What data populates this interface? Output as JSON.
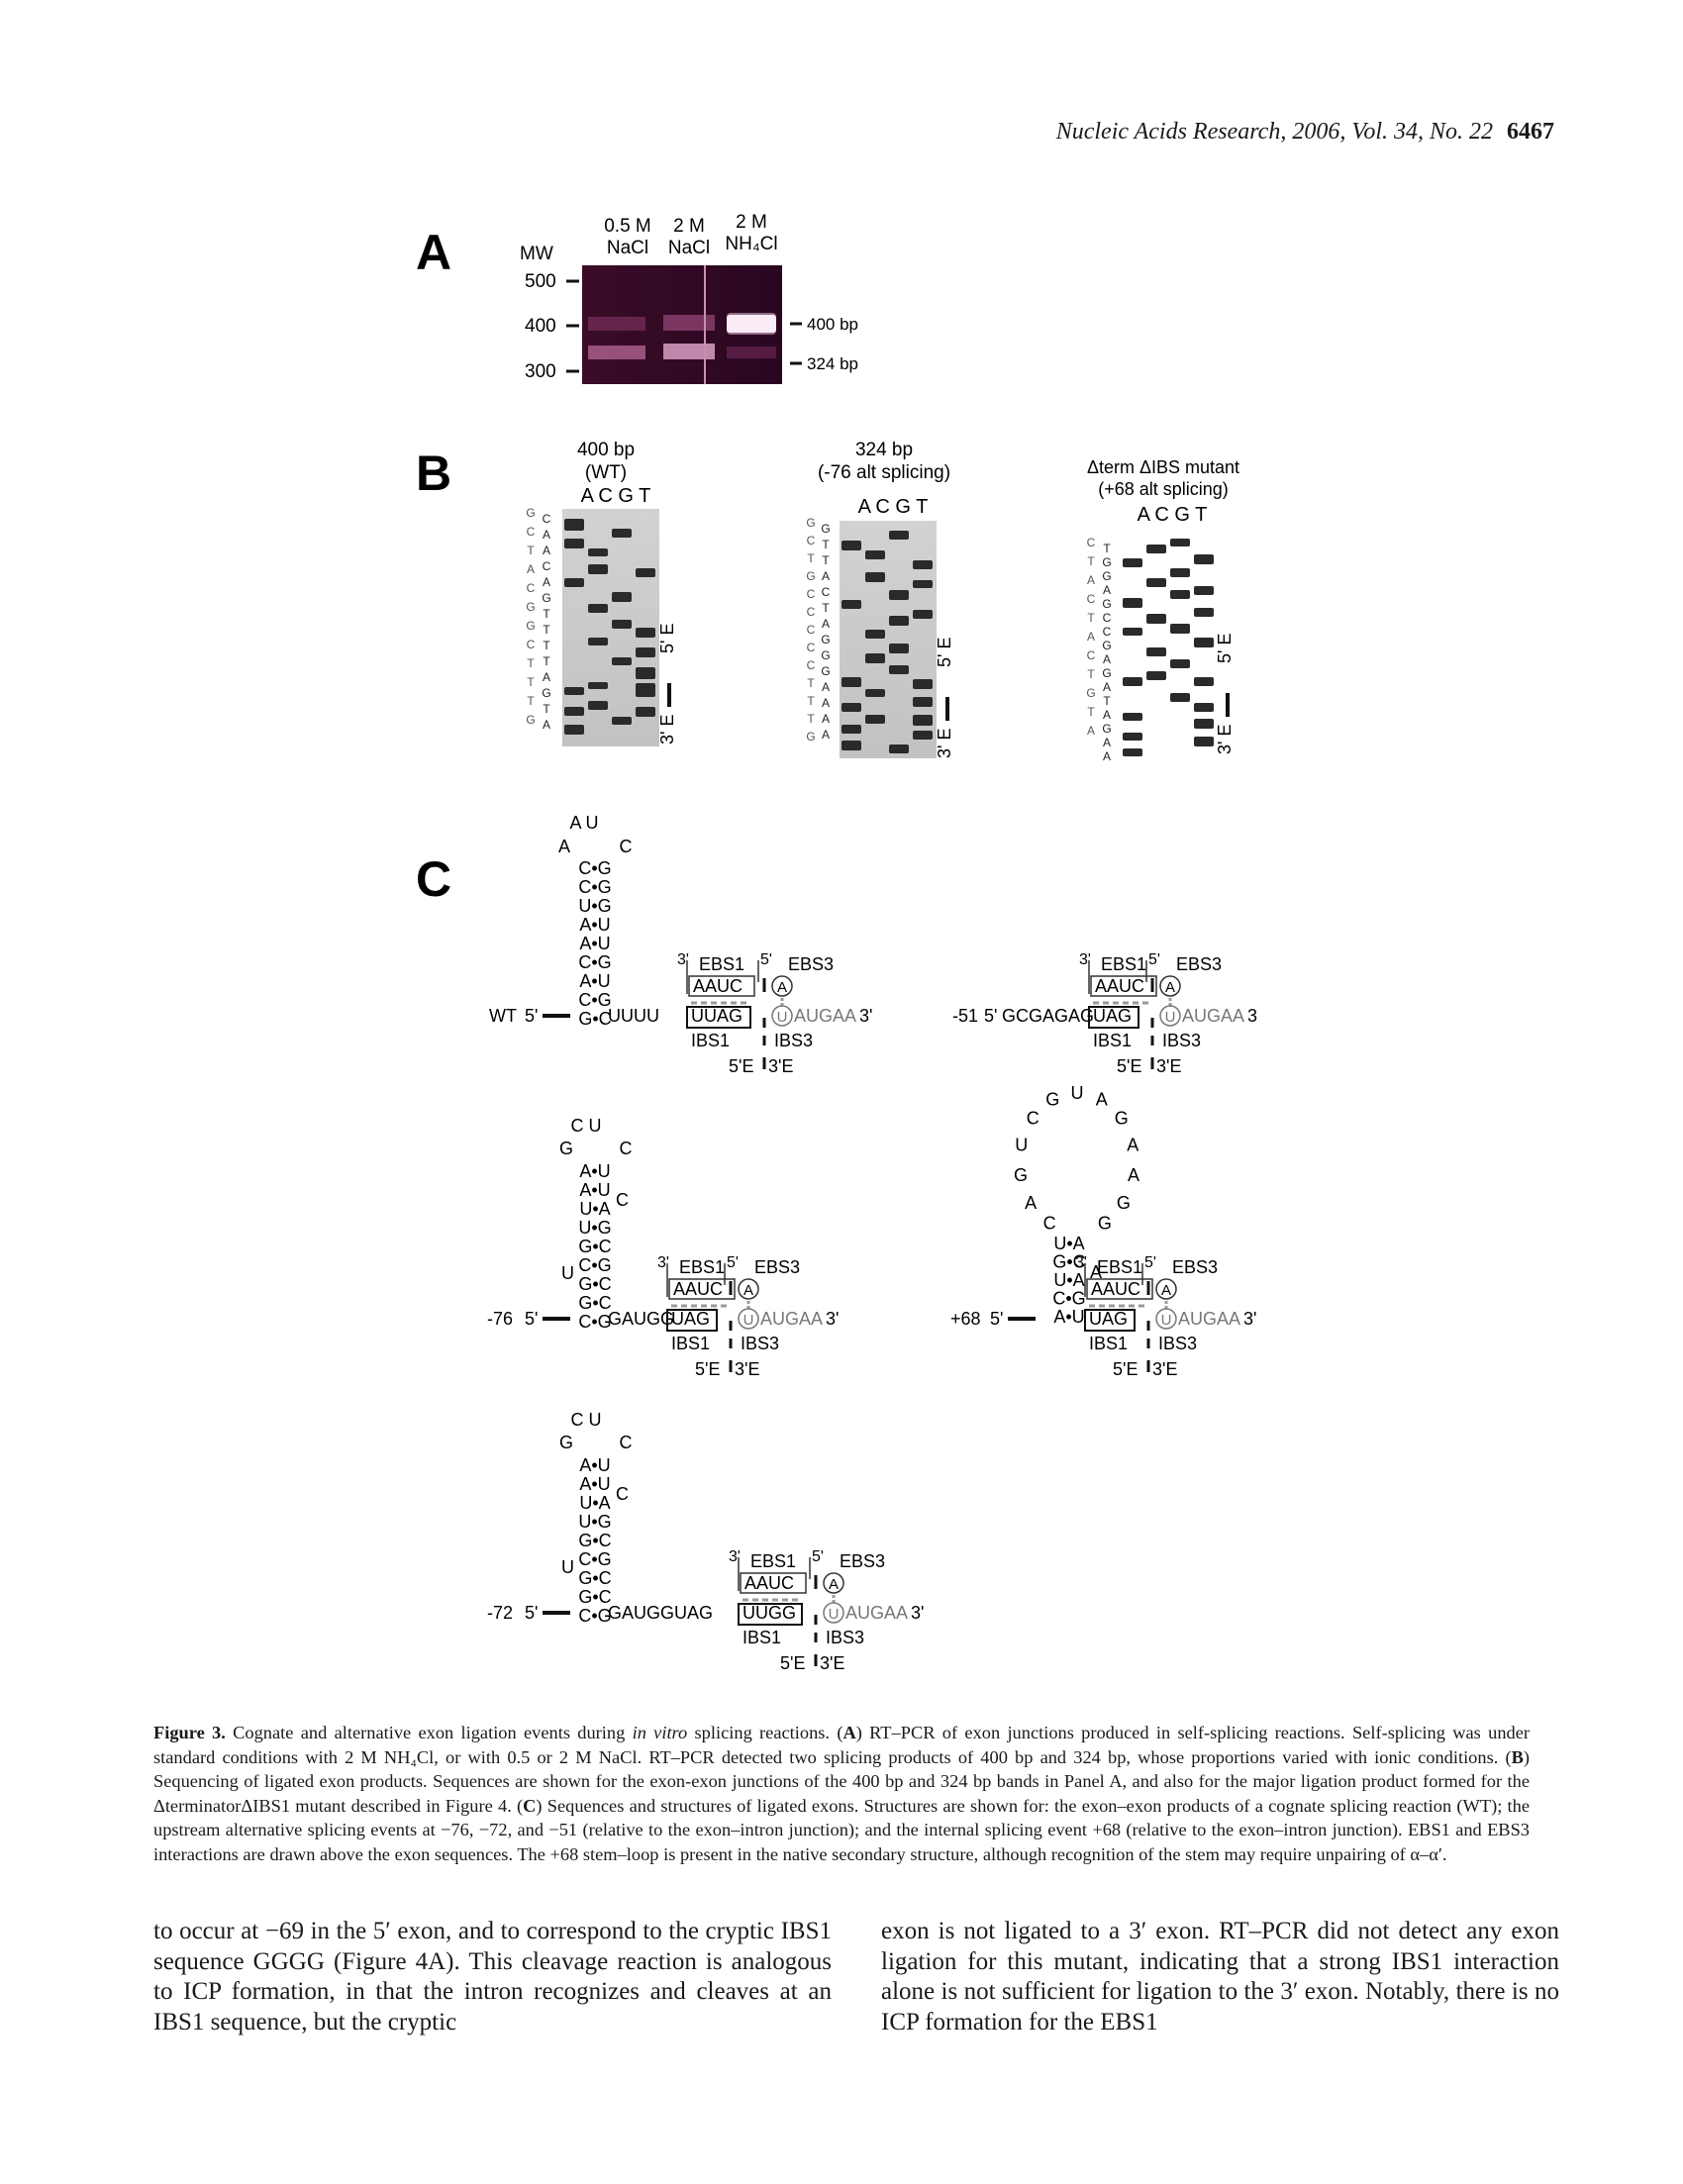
{
  "header": {
    "journal": "Nucleic Acids Research, 2006, Vol. 34, No. 22",
    "page": "6467"
  },
  "panelA": {
    "label": "A",
    "mw_label": "MW",
    "lanes": [
      {
        "top": "0.5 M",
        "bottom": "NaCl"
      },
      {
        "top": "2 M",
        "bottom": "NaCl"
      },
      {
        "top": "2 M",
        "bottom": "NH₄Cl"
      }
    ],
    "markers": [
      "500",
      "400",
      "300"
    ],
    "bands": [
      "400 bp",
      "324 bp"
    ]
  },
  "panelB": {
    "label": "B",
    "gels": [
      {
        "title1": "400 bp",
        "title2": "(WT)",
        "lanes": "A C G T",
        "seq1": [
          "G",
          "C",
          "T",
          "A",
          "C",
          "G",
          "G",
          "C",
          "T",
          "T",
          "T",
          "G"
        ],
        "seq2": [
          "C",
          "A",
          "A",
          "C",
          "A",
          "G",
          "T",
          "T",
          "T",
          "T",
          "A",
          "G",
          "T",
          "A"
        ],
        "exon_top": "5' E",
        "exon_bottom": "3' E"
      },
      {
        "title1": "324 bp",
        "title2": "(-76 alt splicing)",
        "lanes": "A C G T",
        "seq1": [
          "G",
          "C",
          "T",
          "G",
          "C",
          "C",
          "C",
          "C",
          "C",
          "T",
          "T",
          "T",
          "G"
        ],
        "seq2": [
          "G",
          "T",
          "T",
          "A",
          "C",
          "T",
          "A",
          "G",
          "G",
          "G",
          "A",
          "A",
          "A",
          "A"
        ],
        "exon_top": "5' E",
        "exon_bottom": "3' E"
      },
      {
        "title1": "Δterm ΔIBS mutant",
        "title2": "(+68 alt splicing)",
        "lanes": "A C G T",
        "seq1": [
          "C",
          "T",
          "A",
          "C",
          "T",
          "A",
          "C",
          "T",
          "G",
          "T",
          "A"
        ],
        "seq2": [
          "T",
          "G",
          "G",
          "A",
          "G",
          "C",
          "C",
          "G",
          "A",
          "G",
          "A",
          "T",
          "A",
          "G",
          "A",
          "A"
        ],
        "exon_top": "5' E",
        "exon_bottom": "3' E"
      }
    ]
  },
  "panelC": {
    "label": "C",
    "common": {
      "ebs1": "EBS1",
      "ebs3": "EBS3",
      "ibs1": "IBS1",
      "ibs3": "IBS3",
      "exon5": "5'E",
      "exon3": "3'E",
      "aauc": "AAUC",
      "three_prime": "3'",
      "five_prime": "5'",
      "a_circ": "A",
      "u_circ": "U",
      "augaa": "AUGAA"
    },
    "wt": {
      "name": "WT",
      "five": "5'",
      "loop_top": "A U",
      "loop_sides": [
        "A",
        "C"
      ],
      "stem": [
        "C•G",
        "C•G",
        "U•G",
        "A•U",
        "A•U",
        "C•G",
        "A•U",
        "C•G",
        "G•C"
      ],
      "tail": "UUUU",
      "ibs": "UUAG",
      "end3": "3'"
    },
    "m51": {
      "name": "-51",
      "five": "5'",
      "seq": "GCGAGAG",
      "ibs": "UAG",
      "end3": "3"
    },
    "m76": {
      "name": "-76",
      "five": "5'",
      "loop_top": "C U",
      "loop_sides": [
        "G",
        "C"
      ],
      "stem": [
        "A•U",
        "A•U",
        "U•A",
        "U•G",
        "G•C",
        "C•G",
        "G•C",
        "G•C",
        "C•G"
      ],
      "bulge_u": "U",
      "bulge_c": "C",
      "tail": "GAUGG",
      "ibs": "UAG",
      "end3": "3'"
    },
    "p68": {
      "name": "+68",
      "five": "5'",
      "loop": [
        "C",
        "A",
        "G",
        "U",
        "C",
        "G",
        "U",
        "A",
        "G",
        "A",
        "A",
        "G",
        "G"
      ],
      "stem": [
        "U•A",
        "G•C",
        "U•A",
        "C•G",
        "A•U"
      ],
      "bulge_a": "A",
      "ibs": "UAG",
      "end3": "3'"
    },
    "m72": {
      "name": "-72",
      "five": "5'",
      "loop_top": "C U",
      "loop_sides": [
        "G",
        "C"
      ],
      "stem": [
        "A•U",
        "A•U",
        "U•A",
        "U•G",
        "G•C",
        "C•G",
        "G•C",
        "G•C",
        "C•G"
      ],
      "bulge_u": "U",
      "bulge_c": "C",
      "tail": "GAUGGUAG",
      "ibs": "UUGG",
      "end3": "3'"
    }
  },
  "caption": {
    "figure": "Figure 3.",
    "part1": " Cognate and alternative exon ligation events during ",
    "italic1": "in vitro",
    "part2": " splicing reactions. (",
    "bA": "A",
    "part3": ") RT–PCR of exon junctions produced in self-splicing reactions. Self-splicing was under standard conditions with 2 M NH₄Cl, or with 0.5 or 2 M NaCl. RT–PCR detected two splicing products of 400 bp and 324 bp, whose proportions varied with ionic conditions. (",
    "bB": "B",
    "part4": ") Sequencing of ligated exon products. Sequences are shown for the exon-exon junctions of the 400 bp and 324 bp bands in Panel A, and also for the major ligation product formed for the ΔterminatorΔIBS1 mutant described in Figure 4. (",
    "bC": "C",
    "part5": ") Sequences and structures of ligated exons. Structures are shown for: the exon–exon products of a cognate splicing reaction (WT); the upstream alternative splicing events at −76, −72, and −51 (relative to the exon–intron junction); and the internal splicing event +68 (relative to the exon–intron junction). EBS1 and EBS3 interactions are drawn above the exon sequences. The +68 stem–loop is present in the native secondary structure, although recognition of the stem may require unpairing of α–α′."
  },
  "body": {
    "left": "to occur at −69 in the 5′ exon, and to correspond to the cryptic IBS1 sequence GGGG (Figure 4A). This cleavage reaction is analogous to ICP formation, in that the intron recognizes and cleaves at an IBS1 sequence, but the cryptic",
    "right": "exon is not ligated to a 3′ exon. RT–PCR did not detect any exon ligation for this mutant, indicating that a strong IBS1 interaction alone is not sufficient for ligation to the 3′ exon. Notably, there is no ICP formation for the EBS1"
  }
}
